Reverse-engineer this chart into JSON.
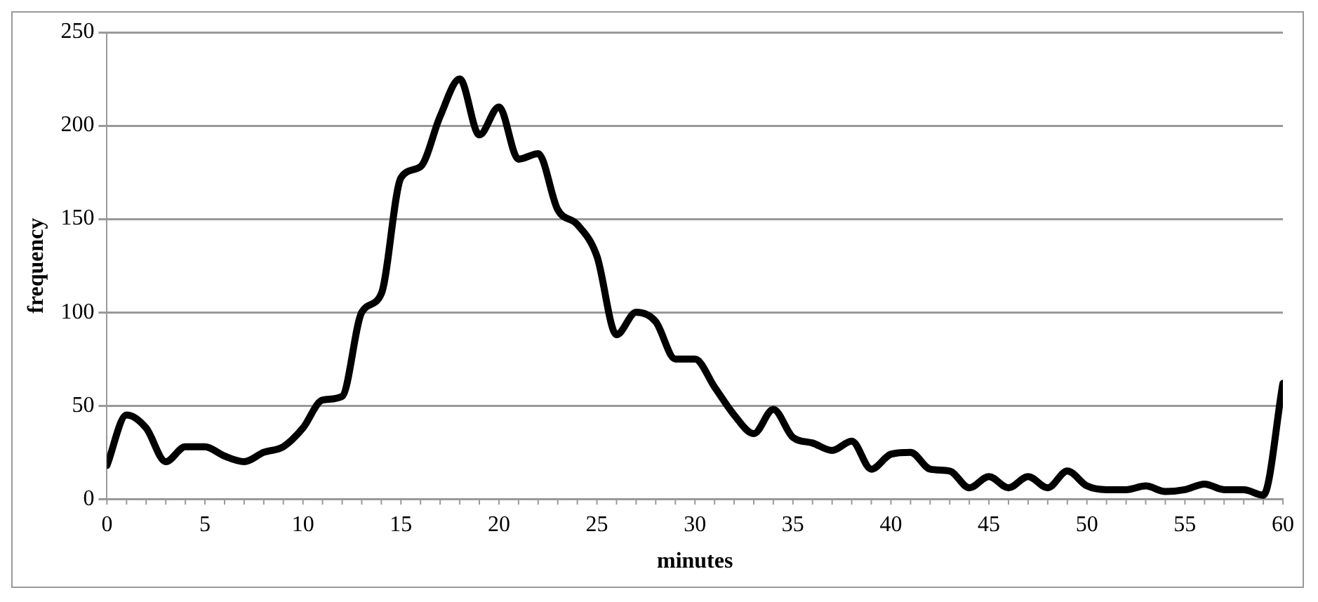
{
  "chart_data": {
    "type": "line",
    "xlabel": "minutes",
    "ylabel": "frequency",
    "x": [
      0,
      1,
      2,
      3,
      4,
      5,
      6,
      7,
      8,
      9,
      10,
      11,
      12,
      13,
      14,
      15,
      16,
      17,
      18,
      19,
      20,
      21,
      22,
      23,
      24,
      25,
      26,
      27,
      28,
      29,
      30,
      31,
      32,
      33,
      34,
      35,
      36,
      37,
      38,
      39,
      40,
      41,
      42,
      43,
      44,
      45,
      46,
      47,
      48,
      49,
      50,
      51,
      52,
      53,
      54,
      55,
      56,
      57,
      58,
      59,
      60
    ],
    "series": [
      {
        "color": "#000000",
        "values": [
          18,
          45,
          38,
          20,
          28,
          28,
          23,
          20,
          25,
          28,
          38,
          53,
          55,
          100,
          110,
          172,
          178,
          205,
          225,
          195,
          210,
          182,
          185,
          155,
          147,
          130,
          88,
          100,
          95,
          75,
          75,
          60,
          45,
          35,
          48,
          33,
          30,
          26,
          31,
          16,
          24,
          25,
          16,
          15,
          6,
          12,
          6,
          12,
          6,
          15,
          7,
          5,
          5,
          7,
          4,
          5,
          8,
          5,
          5,
          2,
          62
        ]
      }
    ],
    "xlim": [
      0,
      60
    ],
    "xticks": [
      0,
      5,
      10,
      15,
      20,
      25,
      30,
      35,
      40,
      45,
      50,
      55,
      60
    ],
    "ylim": [
      0,
      250
    ],
    "yticks": [
      0,
      50,
      100,
      150,
      200,
      250
    ],
    "grid": "y",
    "legend": false,
    "marker": "none",
    "line_style": "solid"
  }
}
